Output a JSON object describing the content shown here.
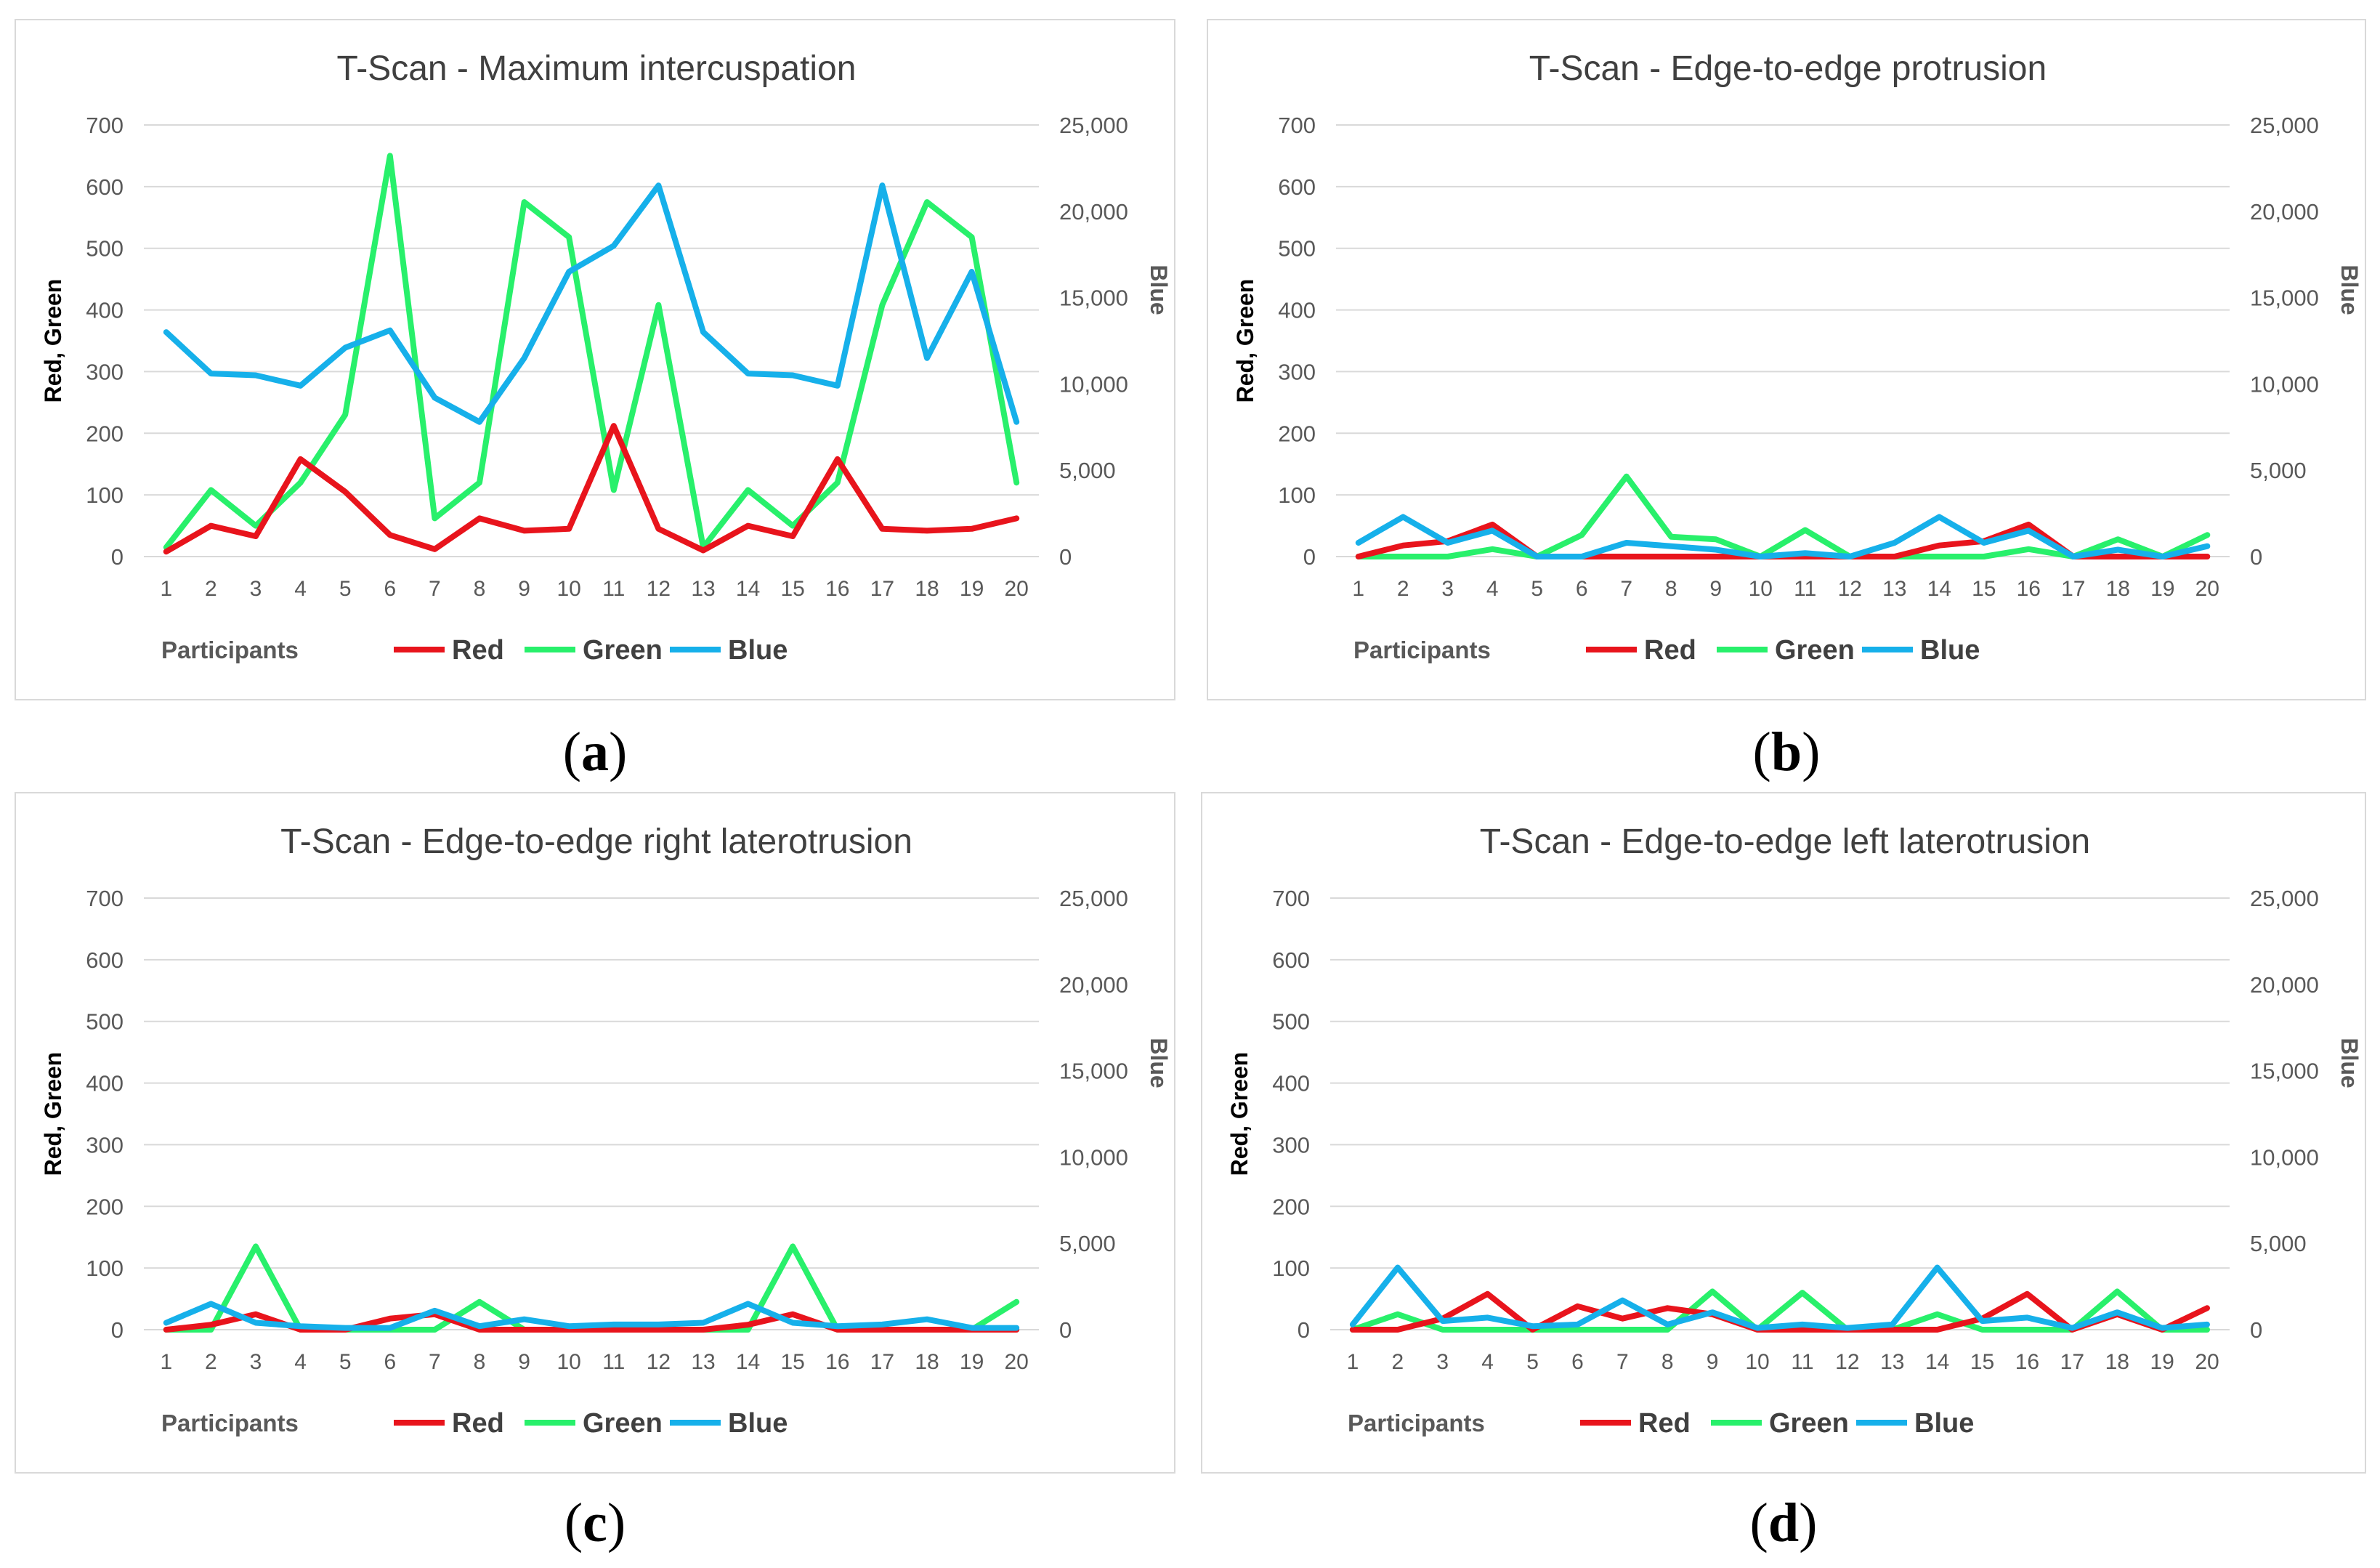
{
  "figure": {
    "panels": [
      {
        "id": "a",
        "caption": "a"
      },
      {
        "id": "b",
        "caption": "b"
      },
      {
        "id": "c",
        "caption": "c"
      },
      {
        "id": "d",
        "caption": "d"
      }
    ]
  },
  "colors": {
    "red": "#e8141c",
    "green": "#28f06b",
    "blue": "#16b0ea",
    "grid": "#d9d9d9",
    "text": "#595959",
    "title": "#404040"
  },
  "chart_data": [
    {
      "type": "line",
      "title": "T-Scan - Maximum intercuspation",
      "xlabel": "Participants",
      "ylabel": "Red, Green",
      "y2label": "Blue",
      "categories": [
        "1",
        "2",
        "3",
        "4",
        "5",
        "6",
        "7",
        "8",
        "9",
        "10",
        "11",
        "12",
        "13",
        "14",
        "15",
        "16",
        "17",
        "18",
        "19",
        "20"
      ],
      "ylim": [
        0,
        700
      ],
      "y2lim": [
        0,
        25000
      ],
      "yticks": [
        "0",
        "100",
        "200",
        "300",
        "400",
        "500",
        "600",
        "700"
      ],
      "y2ticks": [
        "0",
        "5,000",
        "10,000",
        "15,000",
        "20,000",
        "25,000"
      ],
      "legend": [
        "Red",
        "Green",
        "Blue"
      ],
      "series": [
        {
          "name": "Red",
          "axis": "left",
          "values": [
            8,
            50,
            33,
            158,
            105,
            35,
            12,
            62,
            42,
            45,
            212,
            45,
            10,
            50,
            33,
            158,
            45,
            42,
            45,
            62
          ]
        },
        {
          "name": "Green",
          "axis": "left",
          "values": [
            15,
            108,
            50,
            120,
            230,
            650,
            62,
            120,
            575,
            518,
            108,
            408,
            15,
            108,
            50,
            120,
            408,
            575,
            518,
            120
          ]
        },
        {
          "name": "Blue",
          "axis": "right",
          "values": [
            13000,
            10600,
            10500,
            9900,
            12100,
            13100,
            9200,
            7800,
            11500,
            16500,
            18000,
            21500,
            13000,
            10600,
            10500,
            9900,
            21500,
            11500,
            16500,
            7800
          ]
        }
      ]
    },
    {
      "type": "line",
      "title": "T-Scan - Edge-to-edge protrusion",
      "xlabel": "Participants",
      "ylabel": "Red, Green",
      "y2label": "Blue",
      "categories": [
        "1",
        "2",
        "3",
        "4",
        "5",
        "6",
        "7",
        "8",
        "9",
        "10",
        "11",
        "12",
        "13",
        "14",
        "15",
        "16",
        "17",
        "18",
        "19",
        "20"
      ],
      "ylim": [
        0,
        700
      ],
      "y2lim": [
        0,
        25000
      ],
      "yticks": [
        "0",
        "100",
        "200",
        "300",
        "400",
        "500",
        "600",
        "700"
      ],
      "y2ticks": [
        "0",
        "5,000",
        "10,000",
        "15,000",
        "20,000",
        "25,000"
      ],
      "legend": [
        "Red",
        "Green",
        "Blue"
      ],
      "series": [
        {
          "name": "Red",
          "axis": "left",
          "values": [
            0,
            18,
            25,
            52,
            0,
            0,
            0,
            0,
            0,
            0,
            0,
            0,
            0,
            18,
            25,
            52,
            0,
            0,
            0,
            0
          ]
        },
        {
          "name": "Green",
          "axis": "left",
          "values": [
            0,
            0,
            0,
            12,
            0,
            35,
            130,
            32,
            28,
            0,
            43,
            0,
            0,
            0,
            0,
            12,
            0,
            28,
            0,
            35
          ]
        },
        {
          "name": "Blue",
          "axis": "right",
          "values": [
            800,
            2300,
            800,
            1500,
            0,
            0,
            800,
            600,
            400,
            0,
            200,
            0,
            800,
            2300,
            800,
            1500,
            0,
            400,
            0,
            600
          ]
        }
      ]
    },
    {
      "type": "line",
      "title": "T-Scan - Edge-to-edge right laterotrusion",
      "xlabel": "Participants",
      "ylabel": "Red, Green",
      "y2label": "Blue",
      "categories": [
        "1",
        "2",
        "3",
        "4",
        "5",
        "6",
        "7",
        "8",
        "9",
        "10",
        "11",
        "12",
        "13",
        "14",
        "15",
        "16",
        "17",
        "18",
        "19",
        "20"
      ],
      "ylim": [
        0,
        700
      ],
      "y2lim": [
        0,
        25000
      ],
      "yticks": [
        "0",
        "100",
        "200",
        "300",
        "400",
        "500",
        "600",
        "700"
      ],
      "y2ticks": [
        "0",
        "5,000",
        "10,000",
        "15,000",
        "20,000",
        "25,000"
      ],
      "legend": [
        "Red",
        "Green",
        "Blue"
      ],
      "series": [
        {
          "name": "Red",
          "axis": "left",
          "values": [
            0,
            8,
            25,
            0,
            0,
            18,
            25,
            0,
            0,
            0,
            0,
            0,
            0,
            8,
            25,
            0,
            0,
            0,
            0,
            0
          ]
        },
        {
          "name": "Green",
          "axis": "left",
          "values": [
            0,
            0,
            135,
            0,
            0,
            0,
            0,
            45,
            0,
            0,
            0,
            0,
            0,
            0,
            135,
            0,
            0,
            0,
            0,
            45
          ]
        },
        {
          "name": "Blue",
          "axis": "right",
          "values": [
            400,
            1500,
            400,
            200,
            100,
            100,
            1100,
            200,
            600,
            200,
            300,
            300,
            400,
            1500,
            400,
            200,
            300,
            600,
            100,
            100
          ]
        }
      ]
    },
    {
      "type": "line",
      "title": "T-Scan - Edge-to-edge left laterotrusion",
      "xlabel": "Participants",
      "ylabel": "Red, Green",
      "y2label": "Blue",
      "categories": [
        "1",
        "2",
        "3",
        "4",
        "5",
        "6",
        "7",
        "8",
        "9",
        "10",
        "11",
        "12",
        "13",
        "14",
        "15",
        "16",
        "17",
        "18",
        "19",
        "20"
      ],
      "ylim": [
        0,
        700
      ],
      "y2lim": [
        0,
        25000
      ],
      "yticks": [
        "0",
        "100",
        "200",
        "300",
        "400",
        "500",
        "600",
        "700"
      ],
      "y2ticks": [
        "0",
        "5,000",
        "10,000",
        "15,000",
        "20,000",
        "25,000"
      ],
      "legend": [
        "Red",
        "Green",
        "Blue"
      ],
      "series": [
        {
          "name": "Red",
          "axis": "left",
          "values": [
            0,
            0,
            18,
            58,
            0,
            38,
            18,
            35,
            25,
            0,
            0,
            0,
            0,
            0,
            18,
            58,
            0,
            25,
            0,
            35
          ]
        },
        {
          "name": "Green",
          "axis": "left",
          "values": [
            0,
            25,
            0,
            0,
            0,
            0,
            0,
            0,
            62,
            0,
            60,
            0,
            0,
            25,
            0,
            0,
            0,
            62,
            0,
            0
          ]
        },
        {
          "name": "Blue",
          "axis": "right",
          "values": [
            300,
            3600,
            500,
            700,
            200,
            300,
            1700,
            300,
            1000,
            100,
            300,
            100,
            300,
            3600,
            500,
            700,
            100,
            1000,
            100,
            300
          ]
        }
      ]
    }
  ]
}
